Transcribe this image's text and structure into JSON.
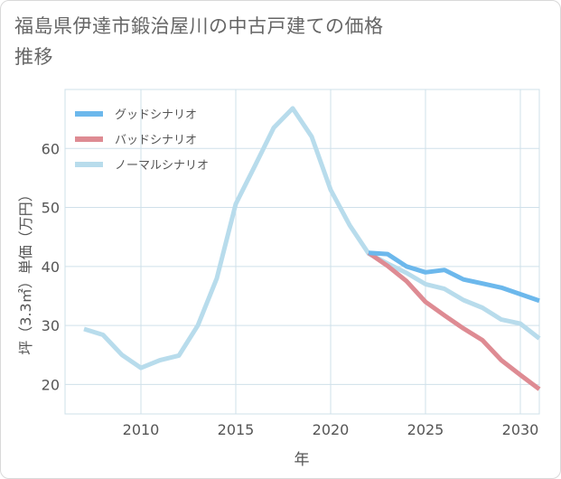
{
  "chart_data": {
    "type": "line",
    "title": "福島県伊達市鍛治屋川の中古戸建ての価格推移",
    "xlabel": "年",
    "ylabel": "坪（3.3㎡）単価（万円）",
    "xlim": [
      2006,
      2031
    ],
    "ylim": [
      15,
      70
    ],
    "xticks": [
      2010,
      2015,
      2020,
      2025,
      2030
    ],
    "yticks": [
      20,
      30,
      40,
      50,
      60
    ],
    "series": [
      {
        "name": "グッドシナリオ",
        "color": "#6cb8ec",
        "x": [
          2022,
          2023,
          2024,
          2025,
          2026,
          2027,
          2028,
          2029,
          2030,
          2031
        ],
        "values": [
          42.3,
          42.1,
          40.0,
          39.0,
          39.4,
          37.8,
          37.1,
          36.4,
          35.3,
          34.2
        ]
      },
      {
        "name": "バッドシナリオ",
        "color": "#de8b93",
        "x": [
          2022,
          2023,
          2024,
          2025,
          2026,
          2027,
          2028,
          2029,
          2030,
          2031
        ],
        "values": [
          42.3,
          40.1,
          37.5,
          34.0,
          31.7,
          29.5,
          27.5,
          24.1,
          21.6,
          19.2
        ]
      },
      {
        "name": "ノーマルシナリオ",
        "color": "#b8dcec",
        "x": [
          2007,
          2008,
          2009,
          2010,
          2011,
          2012,
          2013,
          2014,
          2015,
          2016,
          2017,
          2018,
          2019,
          2020,
          2021,
          2022,
          2023,
          2024,
          2025,
          2026,
          2027,
          2028,
          2029,
          2030,
          2031
        ],
        "values": [
          29.4,
          28.4,
          25.0,
          22.8,
          24.1,
          24.9,
          30.0,
          38.0,
          50.6,
          57.0,
          63.5,
          66.8,
          62.0,
          53.0,
          47.0,
          42.2,
          40.5,
          38.9,
          37.0,
          36.2,
          34.3,
          33.0,
          31.0,
          30.3,
          27.8
        ]
      }
    ]
  }
}
